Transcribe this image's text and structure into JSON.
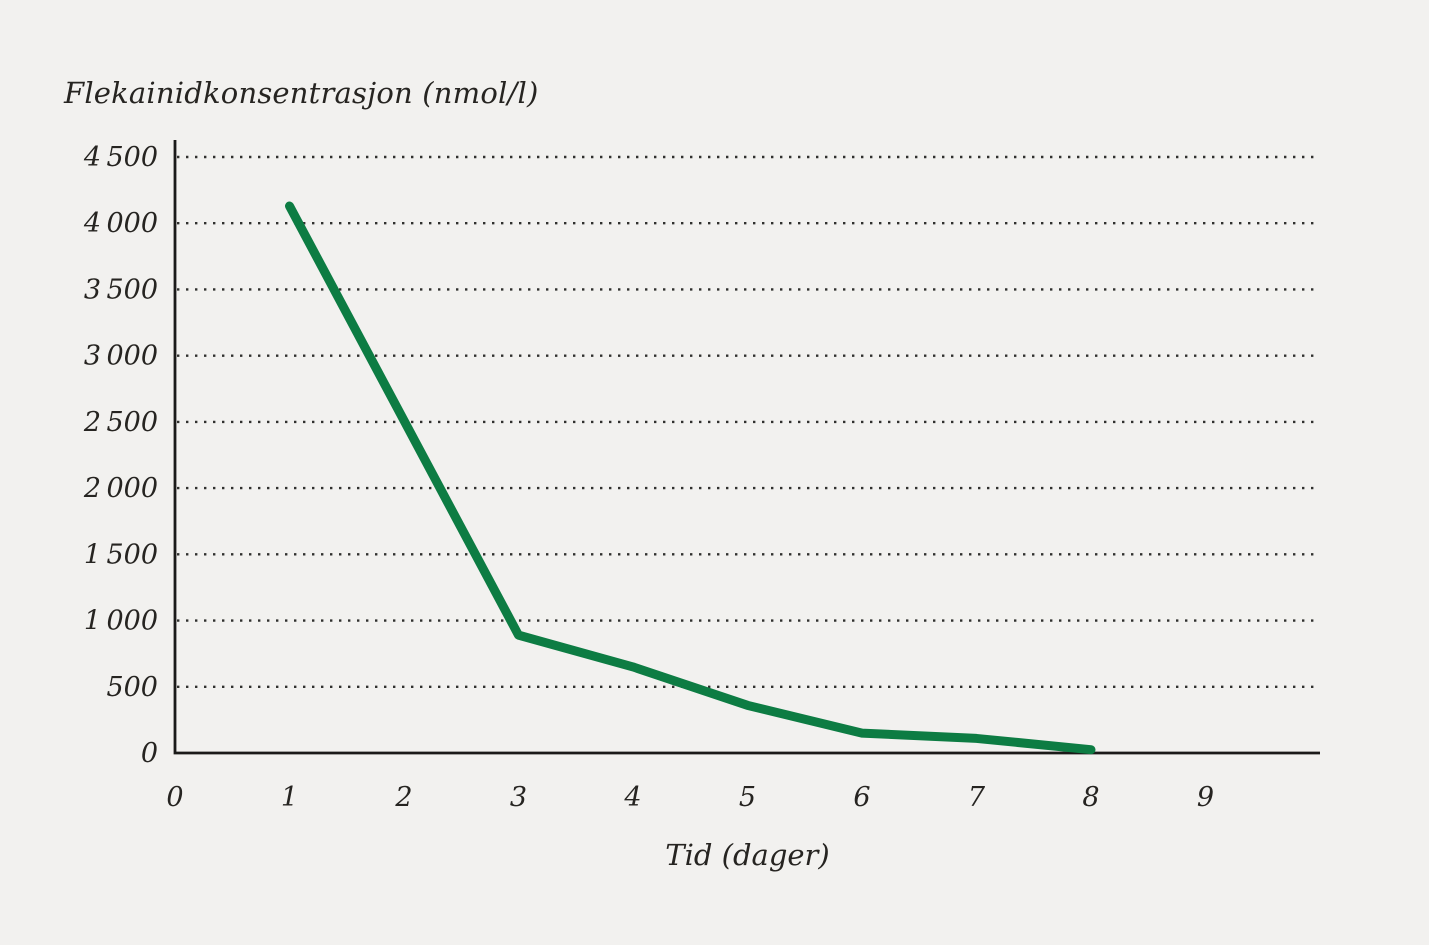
{
  "colors": {
    "background": "#f2f1ef",
    "line": "#0d7c43",
    "axis": "#1b1a19",
    "grid_dot": "#30302e",
    "text": "#262421"
  },
  "chart_data": {
    "type": "line",
    "title": "Flekainidkonsentrasjon (nmol/l)",
    "xlabel": "Tid (dager)",
    "ylabel": "Flekainidkonsentrasjon (nmol/l)",
    "series": [
      {
        "name": "Flekainidkonsentrasjon",
        "color": "#0d7c43",
        "points": [
          [
            1,
            4130
          ],
          [
            3,
            890
          ],
          [
            4,
            650
          ],
          [
            5,
            360
          ],
          [
            6,
            150
          ],
          [
            7,
            110
          ],
          [
            8,
            25
          ]
        ]
      }
    ],
    "xlim": [
      0,
      10
    ],
    "ylim": [
      0,
      4500
    ],
    "x_ticks": [
      {
        "value": 0,
        "label": "0"
      },
      {
        "value": 1,
        "label": "1"
      },
      {
        "value": 2,
        "label": "2"
      },
      {
        "value": 3,
        "label": "3"
      },
      {
        "value": 4,
        "label": "4"
      },
      {
        "value": 5,
        "label": "5"
      },
      {
        "value": 6,
        "label": "6"
      },
      {
        "value": 7,
        "label": "7"
      },
      {
        "value": 8,
        "label": "8"
      },
      {
        "value": 9,
        "label": "9"
      }
    ],
    "y_ticks": [
      {
        "value": 0,
        "label": "0"
      },
      {
        "value": 500,
        "label": "500"
      },
      {
        "value": 1000,
        "label": "1 000"
      },
      {
        "value": 1500,
        "label": "1 500"
      },
      {
        "value": 2000,
        "label": "2 000"
      },
      {
        "value": 2500,
        "label": "2 500"
      },
      {
        "value": 3000,
        "label": "3 000"
      },
      {
        "value": 3500,
        "label": "3 500"
      },
      {
        "value": 4000,
        "label": "4 000"
      },
      {
        "value": 4500,
        "label": "4 500"
      }
    ],
    "grid": {
      "horizontal": "dotted",
      "vertical": false
    },
    "legend": {
      "visible": false
    }
  }
}
